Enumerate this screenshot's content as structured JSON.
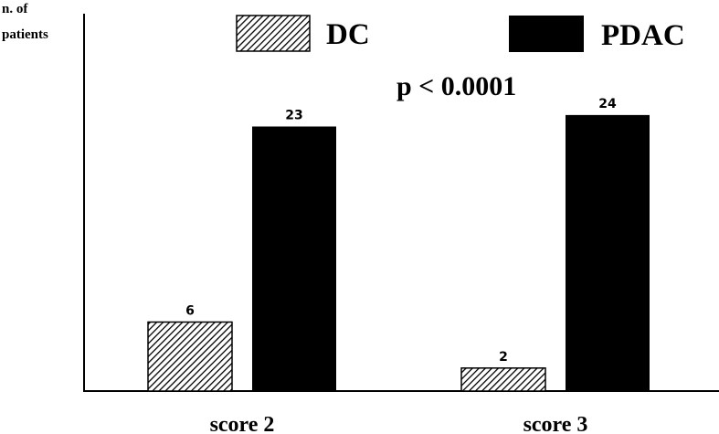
{
  "chart_data": {
    "type": "bar",
    "ylabel_line1": "n. of",
    "ylabel_line2": "patients",
    "categories": [
      "score 2",
      "score 3"
    ],
    "series": [
      {
        "name": "DC",
        "values": [
          6,
          2
        ],
        "pattern": "hatch",
        "color": "#000000"
      },
      {
        "name": "PDAC",
        "values": [
          23,
          24
        ],
        "pattern": "solid",
        "color": "#000000"
      }
    ],
    "annotation": "p < 0.0001",
    "ylim": [
      0,
      34
    ],
    "grid": false,
    "legend_position": "top"
  }
}
